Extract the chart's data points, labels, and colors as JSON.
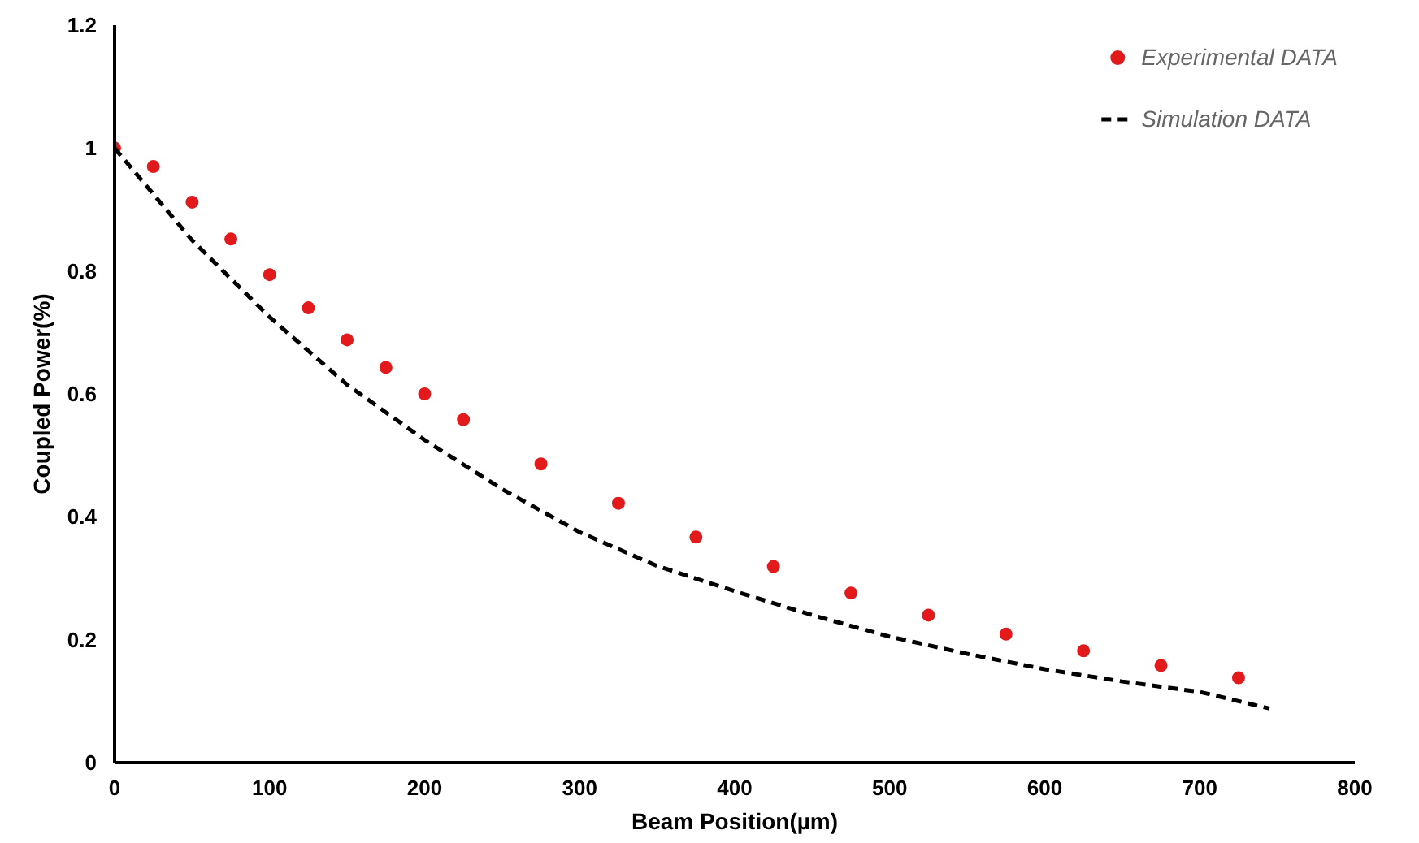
{
  "chart_data": {
    "type": "scatter",
    "xlabel": "Beam Position(µm)",
    "ylabel": "Coupled Power(%)",
    "xlim": [
      0,
      800
    ],
    "ylim": [
      0,
      1.2
    ],
    "xticks": [
      0,
      100,
      200,
      300,
      400,
      500,
      600,
      700,
      800
    ],
    "yticks": [
      0,
      0.2,
      0.4,
      0.6,
      0.8,
      1,
      1.2
    ],
    "grid": false,
    "legend": "top right",
    "series": [
      {
        "name": "Experimental DATA",
        "marker": "circle",
        "color": "#e31a1c",
        "x": [
          0,
          25,
          50,
          75,
          100,
          125,
          150,
          175,
          200,
          225,
          275,
          325,
          375,
          425,
          475,
          525,
          575,
          625,
          675,
          725
        ],
        "values": [
          1.0,
          0.97,
          0.912,
          0.852,
          0.794,
          0.74,
          0.688,
          0.643,
          0.6,
          0.558,
          0.486,
          0.422,
          0.367,
          0.319,
          0.276,
          0.24,
          0.209,
          0.182,
          0.158,
          0.138
        ]
      },
      {
        "name": "Simulation DATA",
        "type": "line",
        "line_style": "dashed",
        "color": "#000000",
        "x": [
          0,
          50,
          100,
          150,
          200,
          250,
          300,
          350,
          400,
          450,
          500,
          550,
          600,
          650,
          700,
          745
        ],
        "values": [
          1.0,
          0.85,
          0.725,
          0.615,
          0.525,
          0.445,
          0.375,
          0.32,
          0.279,
          0.24,
          0.205,
          0.177,
          0.152,
          0.132,
          0.115,
          0.088
        ]
      }
    ]
  }
}
